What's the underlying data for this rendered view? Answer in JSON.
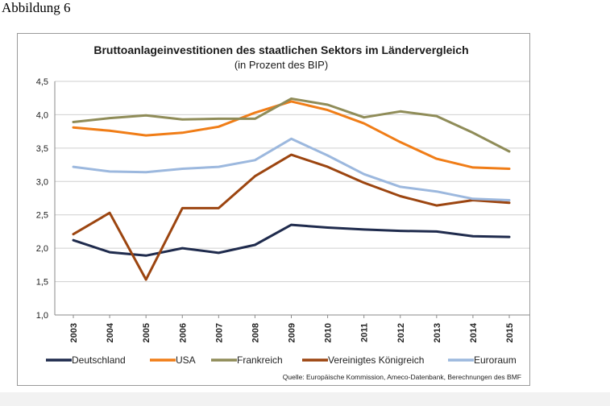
{
  "page": {
    "caption": "Abbildung 6"
  },
  "chart_data": {
    "type": "line",
    "title": "Bruttoanlageinvestitionen des staatlichen Sektors im Ländervergleich",
    "subtitle": "(in Prozent des BIP)",
    "xlabel": "",
    "ylabel": "",
    "ylim": [
      1.0,
      4.5
    ],
    "yticks": [
      "1,0",
      "1,5",
      "2,0",
      "2,5",
      "3,0",
      "3,5",
      "4,0",
      "4,5"
    ],
    "ytick_values": [
      1.0,
      1.5,
      2.0,
      2.5,
      3.0,
      3.5,
      4.0,
      4.5
    ],
    "categories": [
      "2003",
      "2004",
      "2005",
      "2006",
      "2007",
      "2008",
      "2009",
      "2010",
      "2011",
      "2012",
      "2013",
      "2014",
      "2015"
    ],
    "grid": true,
    "legend_position": "bottom",
    "series": [
      {
        "name": "Deutschland",
        "color": "#1f2b4d",
        "values": [
          2.12,
          1.94,
          1.89,
          2.0,
          1.93,
          2.05,
          2.35,
          2.31,
          2.28,
          2.26,
          2.25,
          2.18,
          2.17
        ]
      },
      {
        "name": "USA",
        "color": "#f07d17",
        "values": [
          3.81,
          3.76,
          3.69,
          3.73,
          3.82,
          4.03,
          4.2,
          4.07,
          3.87,
          3.59,
          3.34,
          3.21,
          3.19
        ]
      },
      {
        "name": "Frankreich",
        "color": "#8f8c58",
        "values": [
          3.89,
          3.95,
          3.99,
          3.93,
          3.94,
          3.94,
          4.24,
          4.15,
          3.96,
          4.05,
          3.98,
          3.73,
          3.45
        ]
      },
      {
        "name": "Vereinigtes Königreich",
        "color": "#9c4510",
        "values": [
          2.21,
          2.53,
          1.53,
          2.6,
          2.6,
          3.08,
          3.4,
          3.22,
          2.98,
          2.78,
          2.64,
          2.72,
          2.68
        ]
      },
      {
        "name": "Euroraum",
        "color": "#9cb8de",
        "values": [
          3.22,
          3.15,
          3.14,
          3.19,
          3.22,
          3.32,
          3.64,
          3.39,
          3.11,
          2.92,
          2.85,
          2.74,
          2.72
        ]
      }
    ],
    "source": "Quelle: Europäische Kommission, Ameco-Datenbank, Berechnungen des BMF"
  }
}
